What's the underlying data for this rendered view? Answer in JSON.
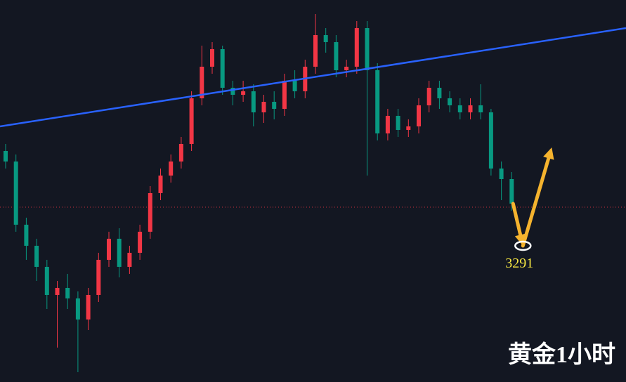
{
  "chart_data": {
    "type": "candlestick",
    "title": "黄金1小时",
    "up_color": "#f23645",
    "down_color": "#089981",
    "ylim": [
      3213.4,
      3431
    ],
    "open": [
      3345,
      3339,
      3303,
      3291,
      3279,
      3263,
      3267,
      3261,
      3249,
      3263,
      3283,
      3295,
      3279,
      3287,
      3299,
      3321,
      3331,
      3339,
      3349,
      3375,
      3393,
      3403,
      3381,
      3377,
      3379,
      3367,
      3373,
      3369,
      3385,
      3379,
      3393,
      3411,
      3407,
      3391,
      3393,
      3415,
      3391,
      3355,
      3365,
      3357,
      3359,
      3371,
      3381,
      3375,
      3371,
      3367,
      3371,
      3367,
      3335,
      3329
    ],
    "close": [
      3339,
      3303,
      3291,
      3279,
      3263,
      3267,
      3261,
      3249,
      3263,
      3283,
      3295,
      3279,
      3287,
      3299,
      3321,
      3331,
      3339,
      3349,
      3375,
      3393,
      3403,
      3381,
      3377,
      3379,
      3367,
      3373,
      3369,
      3385,
      3379,
      3393,
      3411,
      3407,
      3391,
      3393,
      3415,
      3391,
      3355,
      3365,
      3357,
      3359,
      3371,
      3381,
      3375,
      3371,
      3367,
      3371,
      3367,
      3335,
      3329,
      3315
    ],
    "high": [
      3349,
      3343,
      3307,
      3295,
      3283,
      3271,
      3275,
      3265,
      3267,
      3287,
      3299,
      3301,
      3291,
      3303,
      3325,
      3335,
      3343,
      3353,
      3379,
      3405,
      3407,
      3405,
      3385,
      3385,
      3383,
      3377,
      3379,
      3389,
      3391,
      3397,
      3423,
      3415,
      3411,
      3397,
      3419,
      3419,
      3395,
      3369,
      3369,
      3363,
      3375,
      3385,
      3385,
      3379,
      3375,
      3375,
      3383,
      3369,
      3339,
      3333
    ],
    "low": [
      3335,
      3299,
      3283,
      3271,
      3255,
      3233,
      3255,
      3219,
      3243,
      3259,
      3279,
      3273,
      3275,
      3283,
      3295,
      3317,
      3327,
      3335,
      3345,
      3371,
      3389,
      3377,
      3371,
      3373,
      3359,
      3361,
      3363,
      3365,
      3375,
      3375,
      3389,
      3401,
      3387,
      3387,
      3389,
      3331,
      3351,
      3351,
      3353,
      3353,
      3355,
      3367,
      3369,
      3367,
      3363,
      3363,
      3363,
      3331,
      3317,
      3311
    ],
    "trendline": {
      "color": "#2962ff",
      "values": [
        3359,
        3415
      ]
    },
    "reference_line": {
      "color": "#f23645",
      "value": 3313
    },
    "arrows": [
      {
        "color": "#f5b32e",
        "values": [
          3315,
          3291
        ]
      },
      {
        "color": "#f5b32e",
        "values": [
          3291,
          3347
        ]
      }
    ],
    "annotation": {
      "value": 3291,
      "label": "3291"
    }
  }
}
